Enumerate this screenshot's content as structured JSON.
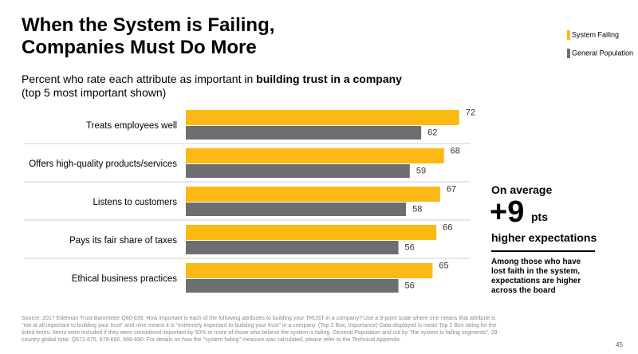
{
  "chart_data": {
    "type": "bar",
    "orientation": "horizontal",
    "title": [
      "When the System is Failing,",
      "Companies Must Do More"
    ],
    "subtitle": [
      "Percent who rate each attribute as important in ",
      "building trust in a company"
    ],
    "subtitle_note": "(top 5 most important shown)",
    "categories": [
      "Treats employees well",
      "Offers high-quality products/services",
      "Listens to customers",
      "Pays its fair share of taxes",
      "Ethical business practices"
    ],
    "series": [
      {
        "name": "System Failing",
        "color": "#fcb813",
        "values": [
          72,
          68,
          67,
          66,
          65
        ]
      },
      {
        "name": "General Population",
        "color": "#6d6e71",
        "values": [
          62,
          59,
          58,
          56,
          56
        ]
      }
    ],
    "legend": "top-right"
  },
  "callout": {
    "lead": "On average",
    "big": "+9",
    "unit": "pts",
    "tail": "higher expectations",
    "note": "Among those who have lost faith in the system, expectations are higher across the board"
  },
  "source": "Source: 2017 Edelman Trust Barometer Q80-639. How important is each of the following attributes to building your TRUST in a company? Use a 9-point scale where one means that attribute is \"not at all important to building your trust\" and nine means it is \"extremely important to building your trust\" in a company. (Top 2 Box, Importance) Data displayed is mean Top 2 Box rating for the listed items. Items were included if they were considered important by 50% or more of those who believe the system is failing. General Population and cut by \"the system is failing segments\", 28-country global total. Q672-675, 678-680, 688-690. For details on how the \"system failing\" measure was calculated, please refer to the Technical Appendix.",
  "page_number": "45"
}
